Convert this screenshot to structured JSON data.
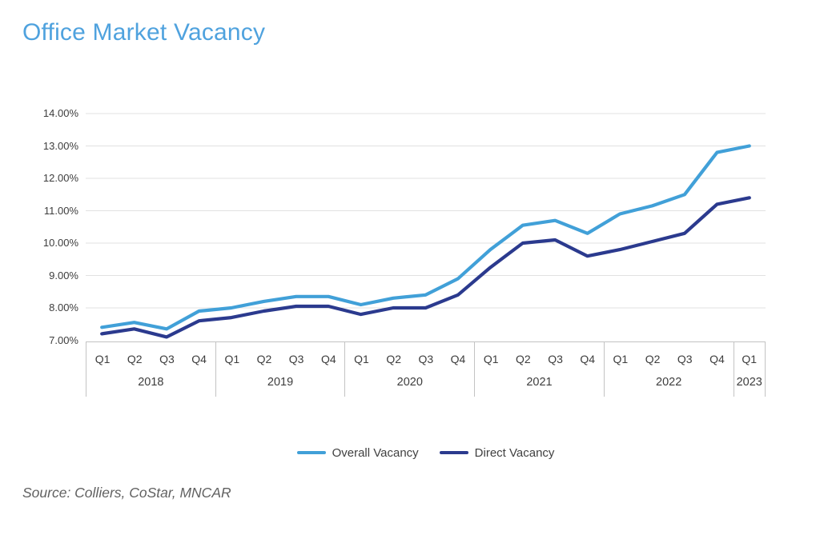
{
  "title": "Office Market Vacancy",
  "source": "Source: Colliers, CoStar, MNCAR",
  "colors": {
    "title": "#4fa2de",
    "overall_line": "#41a0d8",
    "direct_line": "#2b3a8e",
    "axis_text": "#3d3d3d",
    "gridline": "#e1e1e1",
    "axis_line": "#c3c3c3",
    "source_text": "#616161"
  },
  "chart_data": {
    "type": "line",
    "title": "Office Market Vacancy",
    "xlabel": "",
    "ylabel": "",
    "ylim": [
      7,
      14
    ],
    "grid": "horizontal",
    "legend_position": "bottom",
    "y_ticks": [
      "14.00%",
      "13.00%",
      "12.00%",
      "11.00%",
      "10.00%",
      "9.00%",
      "8.00%",
      "7.00%"
    ],
    "years": [
      {
        "label": "2018",
        "quarters": [
          "Q1",
          "Q2",
          "Q3",
          "Q4"
        ]
      },
      {
        "label": "2019",
        "quarters": [
          "Q1",
          "Q2",
          "Q3",
          "Q4"
        ]
      },
      {
        "label": "2020",
        "quarters": [
          "Q1",
          "Q2",
          "Q3",
          "Q4"
        ]
      },
      {
        "label": "2021",
        "quarters": [
          "Q1",
          "Q2",
          "Q3",
          "Q4"
        ]
      },
      {
        "label": "2022",
        "quarters": [
          "Q1",
          "Q2",
          "Q3",
          "Q4"
        ]
      },
      {
        "label": "2023",
        "quarters": [
          "Q1"
        ]
      }
    ],
    "categories": [
      "2018 Q1",
      "2018 Q2",
      "2018 Q3",
      "2018 Q4",
      "2019 Q1",
      "2019 Q2",
      "2019 Q3",
      "2019 Q4",
      "2020 Q1",
      "2020 Q2",
      "2020 Q3",
      "2020 Q4",
      "2021 Q1",
      "2021 Q2",
      "2021 Q3",
      "2021 Q4",
      "2022 Q1",
      "2022 Q2",
      "2022 Q3",
      "2022 Q4",
      "2023 Q1"
    ],
    "series": [
      {
        "name": "Overall Vacancy",
        "color": "#41a0d8",
        "values": [
          7.4,
          7.55,
          7.35,
          7.9,
          8.0,
          8.2,
          8.35,
          8.35,
          8.1,
          8.3,
          8.4,
          8.9,
          9.8,
          10.55,
          10.7,
          10.3,
          10.9,
          11.15,
          11.5,
          12.8,
          13.0
        ]
      },
      {
        "name": "Direct Vacancy",
        "color": "#2b3a8e",
        "values": [
          7.2,
          7.35,
          7.1,
          7.6,
          7.7,
          7.9,
          8.05,
          8.05,
          7.8,
          8.0,
          8.0,
          8.4,
          9.25,
          10.0,
          10.1,
          9.6,
          9.8,
          10.05,
          10.3,
          11.2,
          11.4
        ]
      }
    ]
  }
}
